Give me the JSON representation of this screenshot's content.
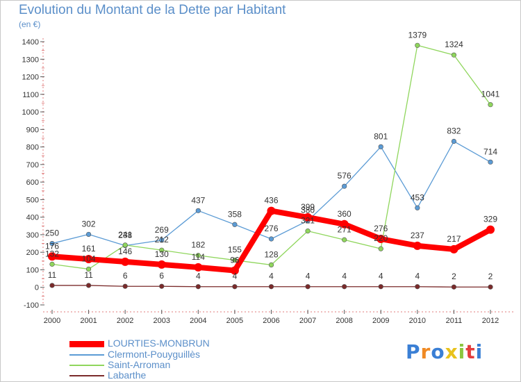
{
  "header": {
    "title": "Evolution du Montant de la Dette par Habitant",
    "subtitle": "(en €)"
  },
  "chart_data": {
    "type": "line",
    "title": "Evolution du Montant de la Dette par Habitant",
    "subtitle": "(en €)",
    "x": [
      2000,
      2001,
      2002,
      2003,
      2004,
      2005,
      2006,
      2007,
      2008,
      2009,
      2010,
      2011,
      2012
    ],
    "ylim": [
      -100,
      1400
    ],
    "yticks": [
      -100,
      0,
      100,
      200,
      300,
      400,
      500,
      600,
      700,
      800,
      900,
      1000,
      1100,
      1200,
      1300,
      1400
    ],
    "grid": false,
    "legend_position": "bottom-left",
    "series": [
      {
        "name": "LOURTIES-MONBRUN",
        "color": "#ff0000",
        "values": [
          176,
          161,
          146,
          130,
          114,
          96,
          436,
          399,
          360,
          276,
          237,
          217,
          329
        ]
      },
      {
        "name": "Clermont-Pouyguillès",
        "color": "#5b9bd5",
        "values": [
          250,
          302,
          238,
          269,
          437,
          358,
          276,
          380,
          576,
          801,
          453,
          832,
          714
        ]
      },
      {
        "name": "Saint-Arroman",
        "color": "#8fd65c",
        "values": [
          132,
          104,
          241,
          212,
          182,
          155,
          128,
          321,
          271,
          220,
          1379,
          1324,
          1041
        ]
      },
      {
        "name": "Labarthe",
        "color": "#7a2a2a",
        "values": [
          11,
          11,
          6,
          6,
          4,
          4,
          4,
          4,
          4,
          4,
          4,
          2,
          2
        ]
      }
    ]
  },
  "logo": {
    "letters": [
      "P",
      "r",
      "o",
      "x",
      "i",
      "t",
      "i"
    ],
    "colors": [
      "#3a7fd5",
      "#f08a24",
      "#3a7fd5",
      "#e8c21c",
      "#8cc63f",
      "#e33d3d",
      "#3a7fd5"
    ]
  }
}
